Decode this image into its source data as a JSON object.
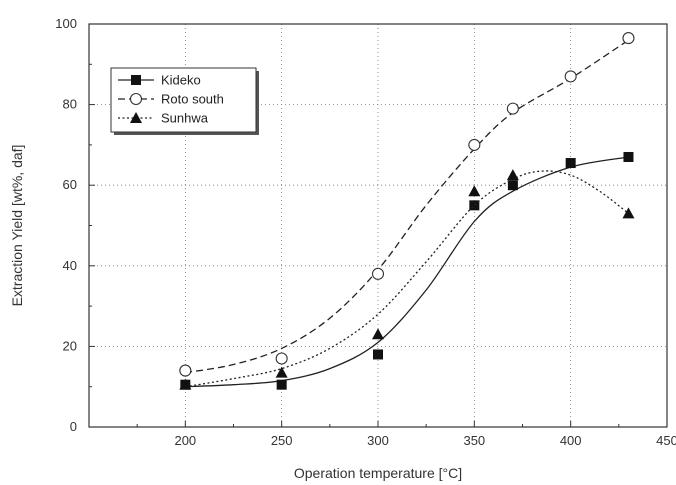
{
  "chart_data": {
    "type": "line",
    "title": "",
    "xlabel": "Operation temperature [°C]",
    "ylabel": "Extraction Yield [wt%, daf]",
    "xlim": [
      150,
      450
    ],
    "ylim": [
      0,
      100
    ],
    "xticks": [
      "200",
      "250",
      "300",
      "350",
      "400",
      "450"
    ],
    "yticks": [
      "0",
      "20",
      "40",
      "60",
      "80",
      "100"
    ],
    "legend_position": "top-left",
    "grid": true,
    "series": [
      {
        "name": "Kideko",
        "marker": "square-filled",
        "line": "solid",
        "color": "#222222",
        "x": [
          200,
          250,
          300,
          350,
          370,
          400,
          430
        ],
        "y": [
          10.5,
          10.5,
          18,
          55,
          60,
          65.5,
          67
        ],
        "fit": [
          [
            200,
            10
          ],
          [
            225,
            10.5
          ],
          [
            250,
            11.5
          ],
          [
            275,
            14.5
          ],
          [
            300,
            21
          ],
          [
            325,
            34
          ],
          [
            350,
            51
          ],
          [
            370,
            58.5
          ],
          [
            400,
            64.5
          ],
          [
            430,
            67
          ]
        ]
      },
      {
        "name": "Roto south",
        "marker": "circle-open",
        "line": "dashed",
        "color": "#222222",
        "x": [
          200,
          250,
          300,
          350,
          370,
          400,
          430
        ],
        "y": [
          14,
          17,
          38,
          70,
          79,
          87,
          96.5
        ],
        "fit": [
          [
            200,
            13.5
          ],
          [
            225,
            15.5
          ],
          [
            250,
            19.5
          ],
          [
            275,
            27
          ],
          [
            300,
            39
          ],
          [
            325,
            55
          ],
          [
            350,
            69
          ],
          [
            370,
            78
          ],
          [
            400,
            86.5
          ],
          [
            430,
            96
          ]
        ]
      },
      {
        "name": "Sunhwa",
        "marker": "triangle-filled",
        "line": "dotted",
        "color": "#222222",
        "x": [
          200,
          250,
          300,
          350,
          370,
          430
        ],
        "y": [
          10.5,
          13.5,
          23,
          58.5,
          62.5,
          53
        ],
        "fit": [
          [
            200,
            10
          ],
          [
            225,
            12
          ],
          [
            250,
            14.5
          ],
          [
            275,
            19.5
          ],
          [
            300,
            28
          ],
          [
            325,
            41
          ],
          [
            350,
            55
          ],
          [
            370,
            61.5
          ],
          [
            385,
            63.5
          ],
          [
            400,
            62.5
          ],
          [
            415,
            58.5
          ],
          [
            430,
            53
          ]
        ]
      }
    ]
  }
}
